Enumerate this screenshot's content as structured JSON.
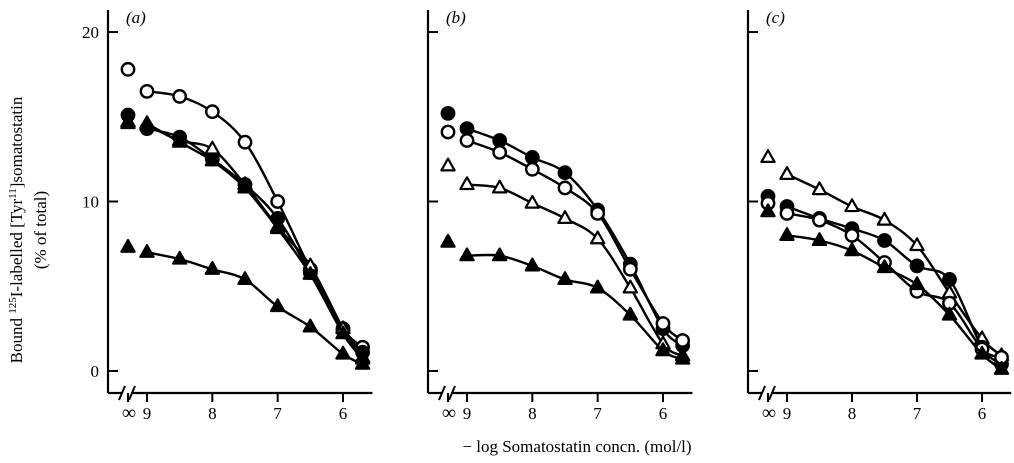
{
  "figure": {
    "y_label_line1_parts": [
      "Bound ",
      "125",
      "I-labelled [Tyr",
      "11",
      "]somatostatin"
    ],
    "y_label_line2": "(% of total)",
    "x_label": "− log Somatostatin concn. (mol/l)",
    "infinity_symbol": "∞"
  },
  "chart_data": [
    {
      "type": "line",
      "panel_label": "(a)",
      "x_ticks": [
        "9",
        "8",
        "7",
        "6"
      ],
      "y_ticks": [
        "0",
        "10",
        "20"
      ],
      "xlim": [
        9.65,
        5.55
      ],
      "ylim": [
        -1.3,
        21.3
      ],
      "axis_break": true,
      "series": [
        {
          "marker": "open-circle",
          "inf_value": 17.8,
          "x": [
            9,
            8.5,
            8,
            7.5,
            7,
            6.5,
            6,
            5.7
          ],
          "y": [
            16.5,
            16.2,
            15.3,
            13.5,
            10.0,
            6.0,
            2.5,
            1.4
          ]
        },
        {
          "marker": "filled-circle",
          "inf_value": 15.1,
          "x": [
            9,
            8.5,
            8,
            7.5,
            7,
            6.5,
            6,
            5.7
          ],
          "y": [
            14.3,
            13.8,
            12.5,
            11.0,
            9.0,
            5.8,
            2.4,
            1.1
          ]
        },
        {
          "marker": "open-triangle",
          "inf_value": 14.7,
          "x": [
            9,
            8.5,
            8,
            7.5,
            7,
            6.5,
            6,
            5.7
          ],
          "y": [
            14.5,
            13.6,
            13.1,
            11.0,
            8.5,
            6.2,
            2.5,
            0.8
          ]
        },
        {
          "marker": "filled-triangle",
          "inf_value": 14.6,
          "x": [
            9,
            8.5,
            8,
            7.5,
            7,
            6.5,
            6,
            5.7
          ],
          "y": [
            14.6,
            13.5,
            12.4,
            10.8,
            8.4,
            5.7,
            2.2,
            0.7
          ]
        },
        {
          "marker": "filled-triangle",
          "inf_value": 7.3,
          "x": [
            9,
            8.5,
            8,
            7.5,
            7,
            6.5,
            6,
            5.7
          ],
          "y": [
            7.0,
            6.6,
            6.0,
            5.4,
            3.8,
            2.6,
            1.0,
            0.4
          ]
        }
      ]
    },
    {
      "type": "line",
      "panel_label": "(b)",
      "x_ticks": [
        "9",
        "8",
        "7",
        "6"
      ],
      "y_ticks": [
        "",
        "",
        ""
      ],
      "xlim": [
        9.65,
        5.55
      ],
      "ylim": [
        -1.3,
        21.3
      ],
      "axis_break": true,
      "series": [
        {
          "marker": "filled-circle",
          "inf_value": 15.2,
          "x": [
            9,
            8.5,
            8,
            7.5,
            7,
            6.5,
            6,
            5.7
          ],
          "y": [
            14.3,
            13.6,
            12.6,
            11.7,
            9.5,
            6.3,
            2.5,
            1.5
          ]
        },
        {
          "marker": "open-circle",
          "inf_value": 14.1,
          "x": [
            9,
            8.5,
            8,
            7.5,
            7,
            6.5,
            6,
            5.7
          ],
          "y": [
            13.6,
            12.9,
            11.9,
            10.8,
            9.3,
            6.0,
            2.8,
            1.8
          ]
        },
        {
          "marker": "open-triangle",
          "inf_value": 12.1,
          "x": [
            9,
            8.5,
            8,
            7.5,
            7,
            6.5,
            6,
            5.7
          ],
          "y": [
            11.0,
            10.8,
            9.9,
            9.0,
            7.8,
            4.9,
            1.6,
            0.9
          ]
        },
        {
          "marker": "filled-triangle",
          "inf_value": 7.6,
          "x": [
            9,
            8.5,
            8,
            7.5,
            7,
            6.5,
            6,
            5.7
          ],
          "y": [
            6.8,
            6.8,
            6.2,
            5.4,
            4.9,
            3.3,
            1.2,
            0.7
          ]
        }
      ]
    },
    {
      "type": "line",
      "panel_label": "(c)",
      "x_ticks": [
        "9",
        "8",
        "7",
        "6"
      ],
      "y_ticks": [
        "",
        "",
        ""
      ],
      "xlim": [
        9.65,
        5.55
      ],
      "ylim": [
        -1.3,
        21.3
      ],
      "axis_break": true,
      "series": [
        {
          "marker": "open-triangle",
          "inf_value": 12.6,
          "x": [
            9,
            8.5,
            8,
            7.5,
            7,
            6.5,
            6,
            5.7
          ],
          "y": [
            11.6,
            10.7,
            9.7,
            8.9,
            7.4,
            4.6,
            1.9,
            0.9
          ]
        },
        {
          "marker": "filled-circle",
          "inf_value": 10.3,
          "x": [
            9,
            8.5,
            8,
            7.5,
            7,
            6.5,
            6,
            5.7
          ],
          "y": [
            9.7,
            9.0,
            8.4,
            7.7,
            6.2,
            5.4,
            1.4,
            0.4
          ]
        },
        {
          "marker": "open-circle",
          "inf_value": 9.9,
          "x": [
            9,
            8.5,
            8,
            7.5,
            7,
            6.5,
            6,
            5.7
          ],
          "y": [
            9.3,
            8.9,
            8.0,
            6.4,
            4.7,
            4.0,
            1.3,
            0.8
          ]
        },
        {
          "marker": "filled-triangle",
          "inf_value": 9.4,
          "x": [
            9,
            8.5,
            8,
            7.5,
            7,
            6.5,
            6,
            5.7
          ],
          "y": [
            8.0,
            7.7,
            7.1,
            6.1,
            5.1,
            3.3,
            1.0,
            0.1
          ]
        }
      ]
    }
  ]
}
